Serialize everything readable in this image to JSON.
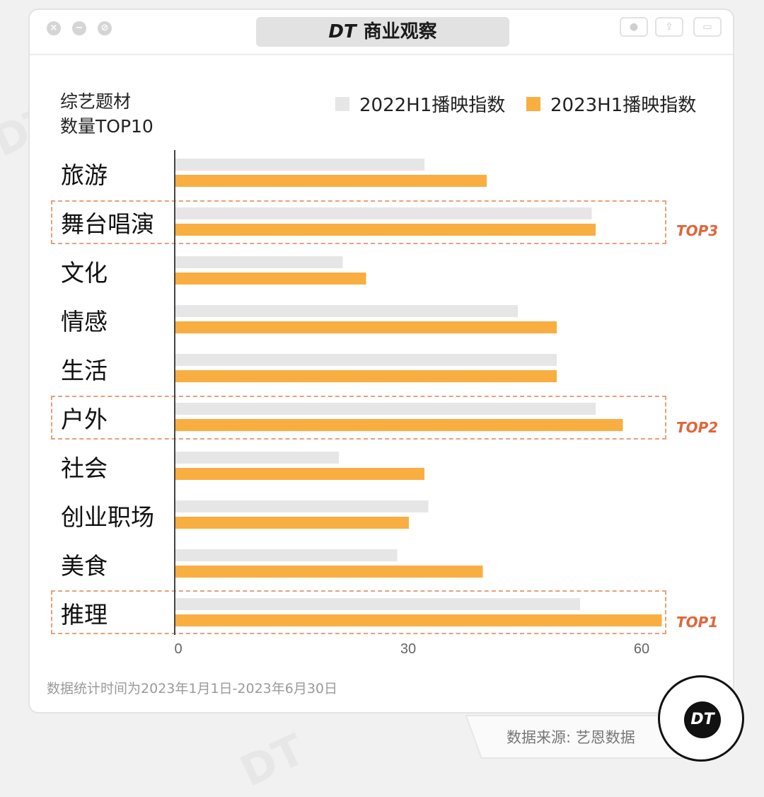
{
  "header": {
    "brand_mark": "DT",
    "title": "商业观察"
  },
  "colors": {
    "series_2022": "#e6e6e6",
    "series_2023": "#f9ae41",
    "top_highlight": "#e0663a"
  },
  "chart_data": {
    "type": "bar",
    "orientation": "horizontal",
    "subtitle_line1": "综艺题材",
    "subtitle_line2": "数量TOP10",
    "categories": [
      "旅游",
      "舞台唱演",
      "文化",
      "情感",
      "生活",
      "户外",
      "社会",
      "创业职场",
      "美食",
      "推理"
    ],
    "series": [
      {
        "name": "2022H1播映指数",
        "values": [
          32,
          53.5,
          21.5,
          44,
          49,
          54,
          21,
          32.5,
          28.5,
          52
        ]
      },
      {
        "name": "2023H1播映指数",
        "values": [
          40,
          54,
          24.5,
          49,
          49,
          57.5,
          32,
          30,
          39.5,
          62.5
        ]
      }
    ],
    "xlim": [
      0,
      63
    ],
    "xticks": [
      "0",
      "30",
      "60"
    ],
    "legend_position": "top-right",
    "grid": false,
    "highlights": [
      {
        "category": "舞台唱演",
        "label": "TOP3"
      },
      {
        "category": "户外",
        "label": "TOP2"
      },
      {
        "category": "推理",
        "label": "TOP1"
      }
    ]
  },
  "footnote": "数据统计时间为2023年1月1日-2023年6月30日",
  "source": "数据来源: 艺恩数据",
  "badge": "DT"
}
